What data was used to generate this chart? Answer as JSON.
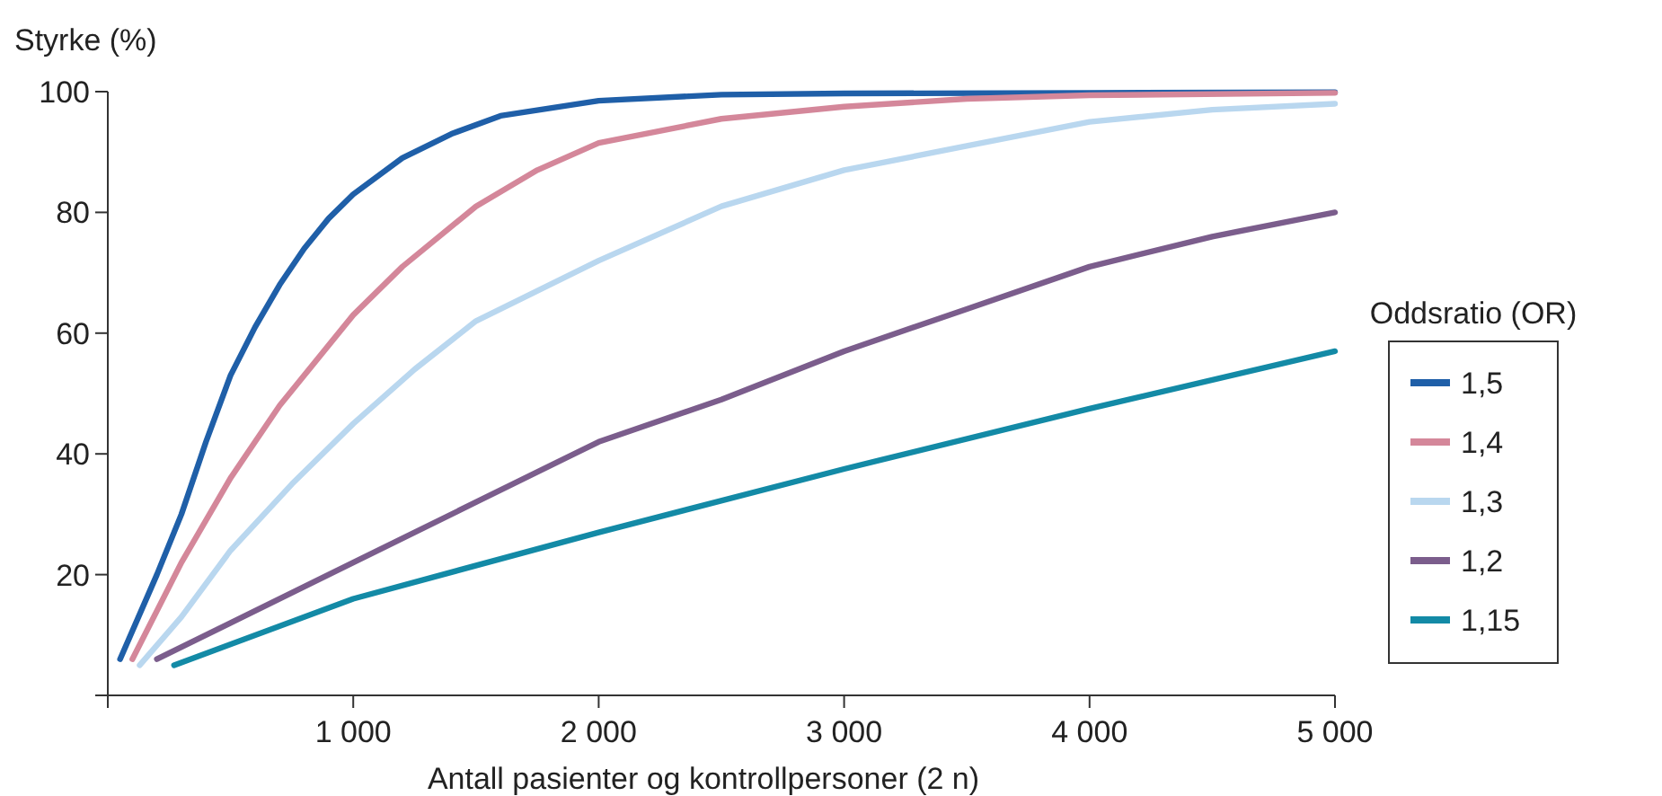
{
  "chart_data": {
    "type": "line",
    "ylabel": "Styrke (%)",
    "xlabel": "Antall pasienter og kontrollpersoner (2 n)",
    "legend_title": "Oddsratio (OR)",
    "legend": "right",
    "grid": false,
    "marker": "none",
    "line_style": "solid",
    "xlim": [
      0,
      5000
    ],
    "ylim": [
      0,
      100
    ],
    "xticks": [
      {
        "value": 0,
        "label": null
      },
      {
        "value": 1000,
        "label": "1 000"
      },
      {
        "value": 2000,
        "label": "2 000"
      },
      {
        "value": 3000,
        "label": "3 000"
      },
      {
        "value": 4000,
        "label": "4 000"
      },
      {
        "value": 5000,
        "label": "5 000"
      }
    ],
    "yticks": [
      {
        "value": 0,
        "label": null
      },
      20,
      40,
      60,
      80,
      100
    ],
    "series": [
      {
        "name": "1,5",
        "color": "#1f5fa8",
        "x": [
          50,
          200,
          300,
          400,
          500,
          600,
          700,
          800,
          900,
          1000,
          1200,
          1400,
          1600,
          2000,
          2500,
          3000,
          4000,
          5000
        ],
        "values": [
          6,
          20,
          30,
          42,
          53,
          61,
          68,
          74,
          79,
          83,
          89,
          93,
          96,
          98.5,
          99.5,
          99.7,
          99.8,
          99.9
        ]
      },
      {
        "name": "1,4",
        "color": "#d4879a",
        "x": [
          100,
          300,
          500,
          700,
          1000,
          1200,
          1500,
          1750,
          2000,
          2500,
          3000,
          3500,
          4000,
          5000
        ],
        "values": [
          6,
          22,
          36,
          48,
          63,
          71,
          81,
          87,
          91.5,
          95.5,
          97.5,
          98.8,
          99.4,
          99.8
        ]
      },
      {
        "name": "1,3",
        "color": "#b9d7ef",
        "x": [
          130,
          300,
          500,
          750,
          1000,
          1250,
          1500,
          2000,
          2500,
          3000,
          3500,
          4000,
          4500,
          5000
        ],
        "values": [
          5,
          13,
          24,
          35,
          45,
          54,
          62,
          72,
          81,
          87,
          91,
          95,
          97,
          98
        ]
      },
      {
        "name": "1,2",
        "color": "#7b5d8c",
        "x": [
          200,
          500,
          1000,
          1500,
          2000,
          2500,
          3000,
          3500,
          4000,
          4500,
          5000
        ],
        "values": [
          6,
          12,
          22,
          32,
          42,
          49,
          57,
          64,
          71,
          76,
          80
        ]
      },
      {
        "name": "1,15",
        "color": "#138aa6",
        "x": [
          270,
          1000,
          2000,
          3000,
          4000,
          5000
        ],
        "values": [
          5,
          16,
          27,
          37.5,
          47.5,
          57
        ]
      }
    ]
  }
}
